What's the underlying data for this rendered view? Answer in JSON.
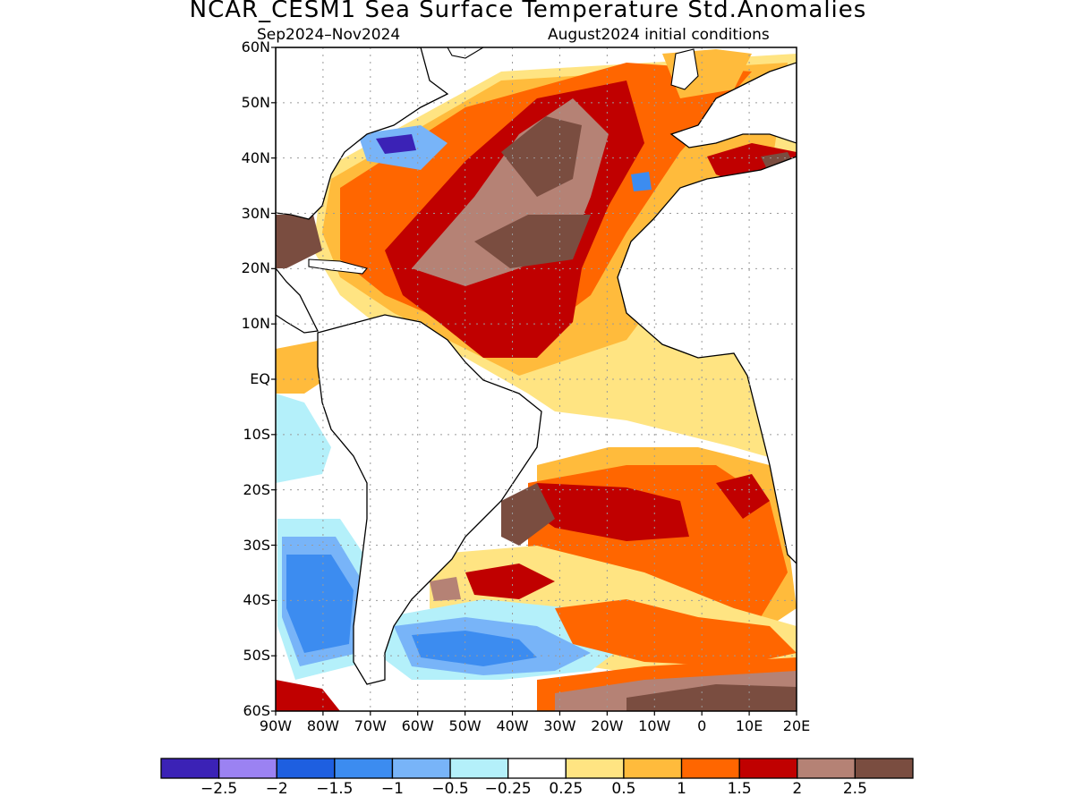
{
  "title": "NCAR_CESM1 Sea Surface Temperature Std.Anomalies",
  "subtitle_left": "Sep2024–Nov2024",
  "subtitle_right": "August2024 initial conditions",
  "lat_labels": [
    "60N",
    "50N",
    "40N",
    "30N",
    "20N",
    "10N",
    "EQ",
    "10S",
    "20S",
    "30S",
    "40S",
    "50S",
    "60S"
  ],
  "lon_labels": [
    "90W",
    "80W",
    "70W",
    "60W",
    "50W",
    "40W",
    "30W",
    "20W",
    "10W",
    "0",
    "10E",
    "20E"
  ],
  "colorbar": {
    "colors": [
      "#3b22b6",
      "#9b82f2",
      "#1e5fe0",
      "#3c8cf0",
      "#78b4f8",
      "#b4f0fa",
      "#ffffff",
      "#ffe482",
      "#ffbb3c",
      "#ff6600",
      "#c00000",
      "#b58275",
      "#7a4d40"
    ],
    "labels": [
      "−2.5",
      "−2",
      "−1.5",
      "−1",
      "−0.5",
      "−0.25",
      "0.25",
      "0.5",
      "1",
      "1.5",
      "2",
      "2.5"
    ]
  }
}
